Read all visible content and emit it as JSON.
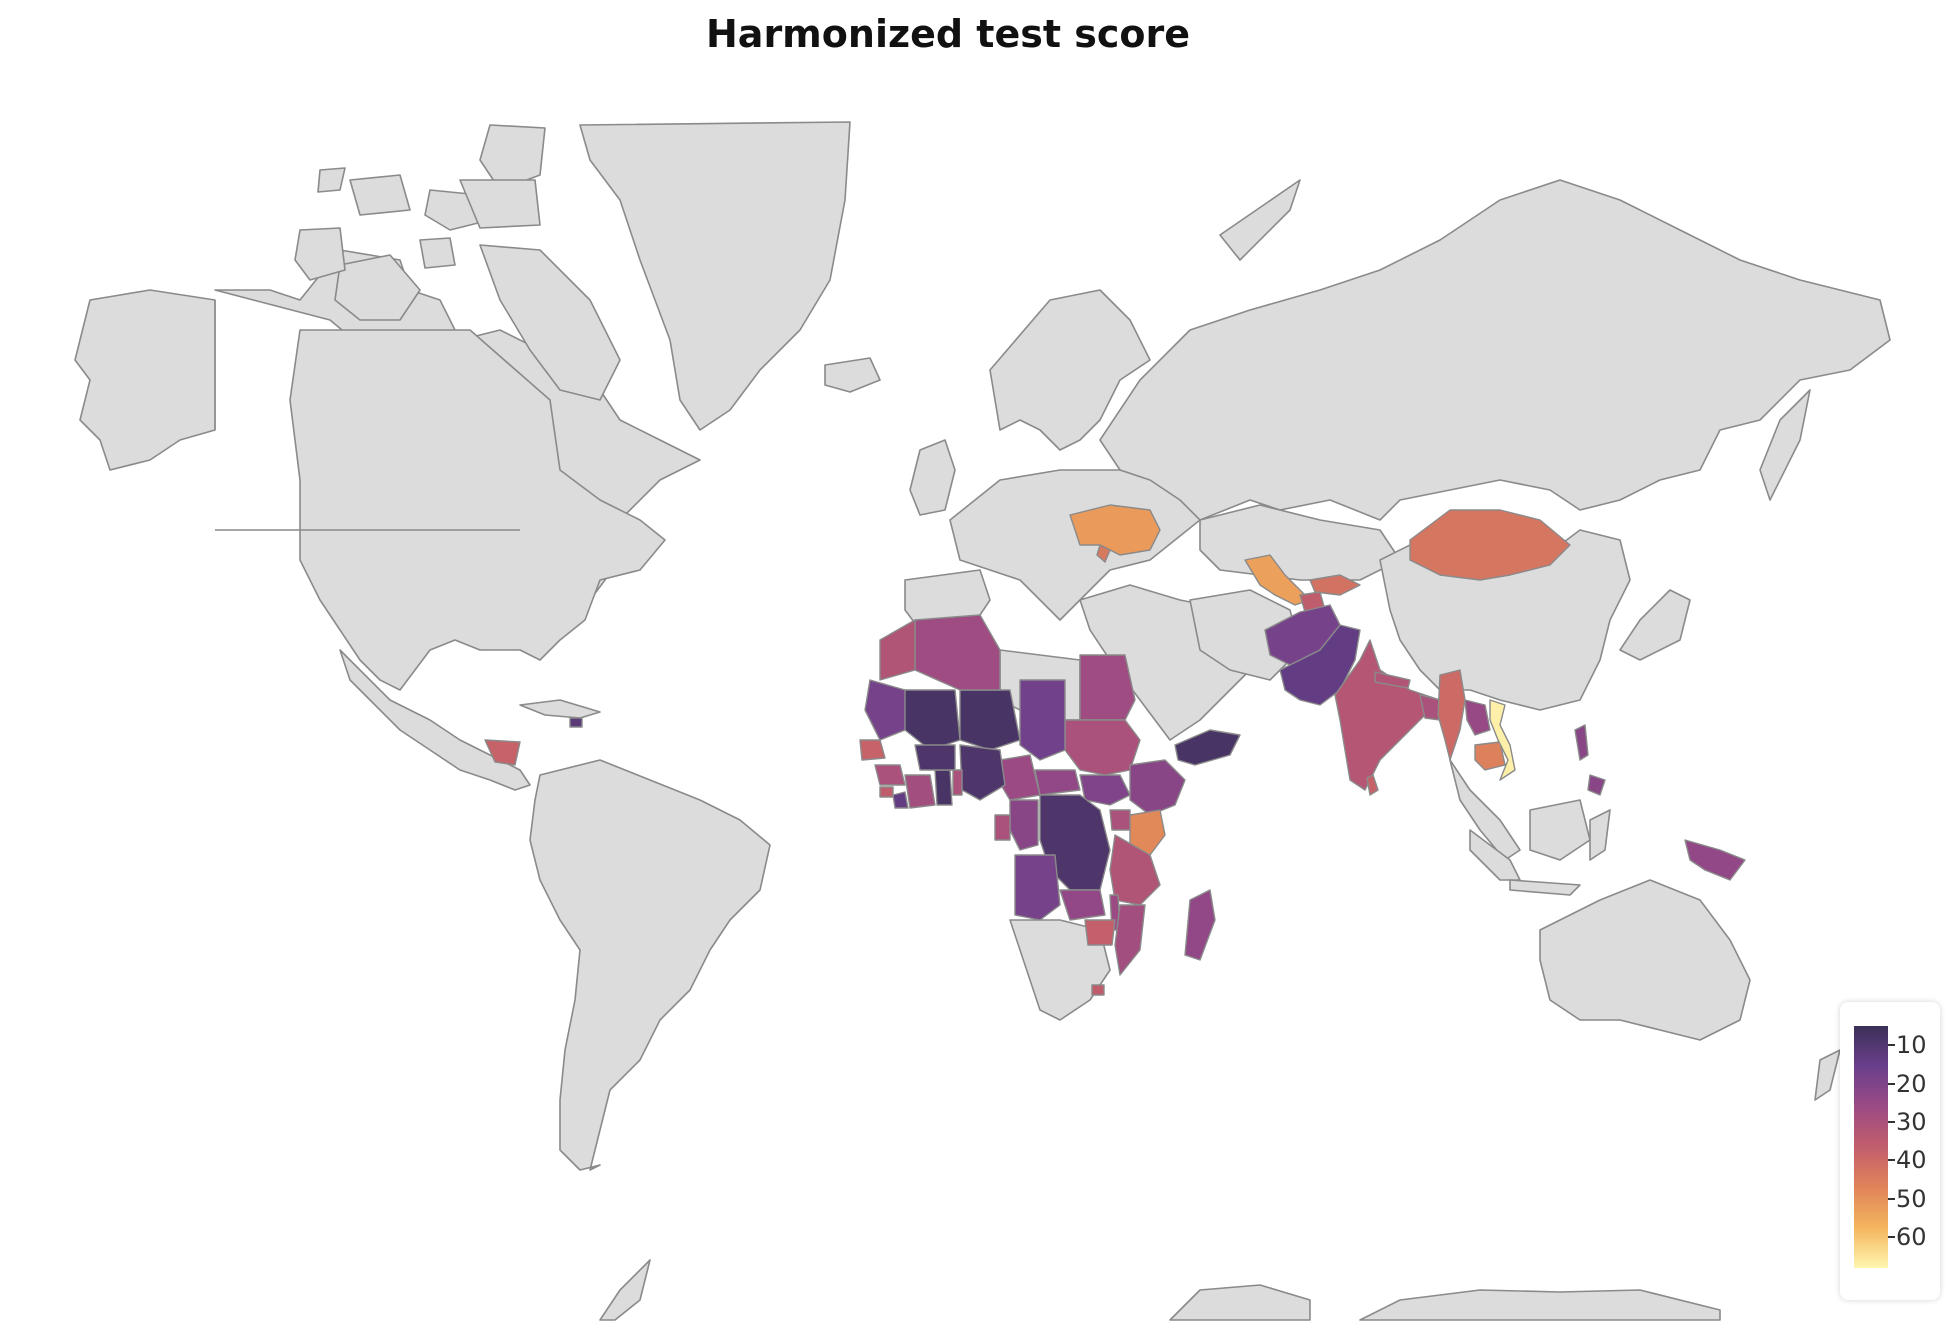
{
  "title": "Harmonized test score",
  "colorbar": {
    "ticks": [
      "10",
      "20",
      "30",
      "40",
      "50",
      "60"
    ],
    "tick_values": [
      10,
      20,
      30,
      40,
      50,
      60
    ],
    "range": [
      5,
      68
    ],
    "colorscale": [
      "#3c3057",
      "#6a3f8c",
      "#9b4a84",
      "#c25e6c",
      "#e0845a",
      "#f4b55e",
      "#fff6b0"
    ]
  },
  "map": {
    "land_color": "#dcdcdc",
    "border_color": "#8a8a8a",
    "ocean_color": "#ffffff"
  },
  "chart_data": {
    "type": "choropleth",
    "title": "Harmonized test score",
    "no_data_color": "#dcdcdc",
    "regions": [
      {
        "name": "Ukraine",
        "value": 52
      },
      {
        "name": "Moldova",
        "value": 44
      },
      {
        "name": "Uzbekistan",
        "value": 53
      },
      {
        "name": "Kyrgyzstan",
        "value": 42
      },
      {
        "name": "Tajikistan",
        "value": 36
      },
      {
        "name": "Mongolia",
        "value": 43
      },
      {
        "name": "Afghanistan",
        "value": 18
      },
      {
        "name": "Pakistan",
        "value": 14
      },
      {
        "name": "India",
        "value": 33
      },
      {
        "name": "Nepal",
        "value": 32
      },
      {
        "name": "Bangladesh",
        "value": 30
      },
      {
        "name": "Myanmar",
        "value": 40
      },
      {
        "name": "Laos",
        "value": 25
      },
      {
        "name": "Cambodia",
        "value": 46
      },
      {
        "name": "Vietnam",
        "value": 67
      },
      {
        "name": "Philippines",
        "value": 22
      },
      {
        "name": "Papua New Guinea",
        "value": 24
      },
      {
        "name": "Sri Lanka",
        "value": 38
      },
      {
        "name": "Yemen",
        "value": 8
      },
      {
        "name": "Egypt",
        "value": 27
      },
      {
        "name": "Sudan",
        "value": 30
      },
      {
        "name": "South Sudan",
        "value": 20
      },
      {
        "name": "Ethiopia",
        "value": 22
      },
      {
        "name": "Kenya",
        "value": 48
      },
      {
        "name": "Uganda",
        "value": 30
      },
      {
        "name": "Tanzania",
        "value": 32
      },
      {
        "name": "DR Congo",
        "value": 9
      },
      {
        "name": "Republic of Congo",
        "value": 22
      },
      {
        "name": "Gabon",
        "value": 30
      },
      {
        "name": "Cameroon",
        "value": 26
      },
      {
        "name": "Central African Republic",
        "value": 24
      },
      {
        "name": "Chad",
        "value": 17
      },
      {
        "name": "Niger",
        "value": 8
      },
      {
        "name": "Nigeria",
        "value": 9
      },
      {
        "name": "Mali",
        "value": 8
      },
      {
        "name": "Mauritania",
        "value": 18
      },
      {
        "name": "Algeria",
        "value": 27
      },
      {
        "name": "Morocco",
        "value": 32
      },
      {
        "name": "Senegal",
        "value": 38
      },
      {
        "name": "Guinea",
        "value": 30
      },
      {
        "name": "Sierra Leone",
        "value": 36
      },
      {
        "name": "Liberia",
        "value": 14
      },
      {
        "name": "Cote d'Ivoire",
        "value": 28
      },
      {
        "name": "Ghana",
        "value": 8
      },
      {
        "name": "Burkina Faso",
        "value": 9
      },
      {
        "name": "Benin",
        "value": 30
      },
      {
        "name": "Angola",
        "value": 18
      },
      {
        "name": "Zambia",
        "value": 24
      },
      {
        "name": "Malawi",
        "value": 26
      },
      {
        "name": "Mozambique",
        "value": 28
      },
      {
        "name": "Zimbabwe",
        "value": 37
      },
      {
        "name": "Madagascar",
        "value": 24
      },
      {
        "name": "Lesotho",
        "value": 36
      },
      {
        "name": "Honduras",
        "value": 38
      },
      {
        "name": "Haiti",
        "value": 12
      }
    ]
  }
}
